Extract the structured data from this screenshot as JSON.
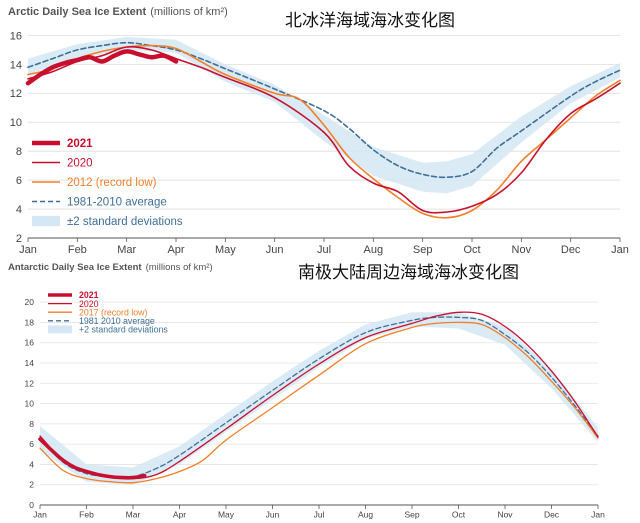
{
  "chart_data": [
    {
      "type": "line",
      "title": "Arctic Daily Sea Ice Extent",
      "title_unit": "(millions of km²)",
      "annotation": "北冰洋海域海冰变化图",
      "x_tick_labels": [
        "Jan",
        "Feb",
        "Mar",
        "Apr",
        "May",
        "Jun",
        "Jul",
        "Aug",
        "Sep",
        "Oct",
        "Nov",
        "Dec",
        "Jan"
      ],
      "y_ticks": [
        2,
        4,
        6,
        8,
        10,
        12,
        14,
        16
      ],
      "ylim": [
        2,
        17
      ],
      "legend_position": "bottom-left",
      "legend": [
        {
          "label": "2021",
          "color": "#c8102e"
        },
        {
          "label": "2020",
          "color": "#c8102e"
        },
        {
          "label": "2012 (record low)",
          "color": "#f07f2a"
        },
        {
          "label": "1981-2010 average",
          "color": "#3f6f98"
        },
        {
          "label": "±2 standard deviations",
          "color": "#d5e7f5"
        }
      ],
      "band": {
        "x": [
          0,
          1,
          2,
          3,
          4,
          5,
          6,
          7,
          8,
          8.5,
          9,
          10,
          11,
          12
        ],
        "lower": [
          13.3,
          14.4,
          15.0,
          14.8,
          12.8,
          11.4,
          8.7,
          6.3,
          5.2,
          5.1,
          5.6,
          8.6,
          11.3,
          13.1
        ],
        "upper": [
          14.4,
          15.4,
          15.9,
          15.7,
          14.0,
          12.6,
          10.5,
          8.3,
          7.2,
          7.3,
          7.8,
          10.4,
          12.5,
          14.1
        ]
      },
      "series": [
        {
          "name": "1981-2010 average",
          "color": "#3f6f98",
          "x": [
            0,
            0.5,
            1,
            1.5,
            2,
            2.5,
            3,
            3.5,
            4,
            5,
            6,
            6.5,
            7,
            7.5,
            8,
            8.5,
            9,
            9.5,
            10,
            11,
            11.5,
            12
          ],
          "y": [
            13.8,
            14.4,
            15.0,
            15.3,
            15.5,
            15.3,
            15.0,
            14.4,
            13.7,
            12.3,
            10.8,
            9.6,
            8.1,
            7.0,
            6.4,
            6.2,
            6.6,
            8.2,
            9.4,
            11.8,
            12.8,
            13.6
          ]
        },
        {
          "name": "2012",
          "color": "#f07f2a",
          "x": [
            0,
            0.5,
            1,
            1.5,
            2,
            2.5,
            3,
            3.5,
            4,
            5,
            5.5,
            6,
            6.5,
            7,
            7.5,
            8,
            8.5,
            9,
            9.5,
            10,
            10.5,
            11,
            11.5,
            12
          ],
          "y": [
            13.3,
            13.7,
            14.4,
            14.9,
            15.2,
            15.3,
            15.1,
            14.2,
            13.3,
            12.0,
            11.6,
            9.8,
            7.6,
            6.1,
            4.8,
            3.7,
            3.4,
            3.9,
            5.3,
            7.3,
            8.8,
            10.3,
            11.8,
            12.9
          ]
        },
        {
          "name": "2020",
          "color": "#c8102e",
          "x": [
            0,
            0.5,
            1,
            1.5,
            2,
            2.5,
            3,
            3.5,
            4,
            5,
            6,
            6.5,
            7,
            7.5,
            8,
            8.5,
            9,
            9.5,
            10,
            10.5,
            11,
            11.5,
            12
          ],
          "y": [
            13.0,
            13.5,
            14.2,
            14.6,
            15.2,
            15.0,
            14.4,
            13.8,
            13.1,
            11.7,
            9.3,
            7.0,
            5.8,
            5.2,
            3.9,
            3.8,
            4.2,
            5.0,
            6.5,
            8.8,
            10.6,
            11.6,
            12.7
          ]
        },
        {
          "name": "2021",
          "color": "#c8102e",
          "bold": true,
          "x": [
            0,
            0.25,
            0.5,
            0.75,
            1,
            1.25,
            1.5,
            1.75,
            2,
            2.25,
            2.5,
            2.75,
            3
          ],
          "y": [
            12.7,
            13.3,
            13.8,
            14.1,
            14.3,
            14.5,
            14.2,
            14.6,
            14.9,
            14.7,
            14.5,
            14.6,
            14.2
          ]
        }
      ]
    },
    {
      "type": "line",
      "title": "Antarctic Daily Sea Ice Extent",
      "title_unit": "(millions of km²)",
      "annotation": "南极大陆周边海域海冰变化图",
      "x_tick_labels": [
        "Jan",
        "Feb",
        "Mar",
        "Apr",
        "May",
        "Jun",
        "Jul",
        "Aug",
        "Sep",
        "Oct",
        "Nov",
        "Dec",
        "Jan"
      ],
      "y_ticks": [
        0,
        2,
        4,
        6,
        8,
        10,
        12,
        14,
        16,
        18,
        20
      ],
      "ylim": [
        0,
        21
      ],
      "legend_position": "top-left",
      "legend": [
        {
          "label": "2021",
          "color": "#c8102e"
        },
        {
          "label": "2020",
          "color": "#c8102e"
        },
        {
          "label": "2017 (record low)",
          "color": "#f07f2a"
        },
        {
          "label": "1981 2010 average",
          "color": "#3f6f98"
        },
        {
          "label": "+2 standard deviations",
          "color": "#d5e7f5"
        }
      ],
      "band": {
        "x": [
          0,
          1,
          2,
          3,
          4,
          5,
          6,
          7,
          8,
          9,
          10,
          11,
          12
        ],
        "lower": [
          5.4,
          2.3,
          2.0,
          4.0,
          7.2,
          10.4,
          13.6,
          16.4,
          17.6,
          17.4,
          15.8,
          11.5,
          6.2
        ],
        "upper": [
          7.8,
          4.0,
          3.7,
          5.8,
          9.0,
          12.2,
          15.2,
          17.8,
          19.0,
          19.0,
          17.6,
          13.4,
          7.6
        ]
      },
      "series": [
        {
          "name": "1981-2010 average",
          "color": "#3f6f98",
          "x": [
            0,
            0.5,
            1,
            1.5,
            2,
            2.5,
            3,
            4,
            5,
            6,
            7,
            8,
            8.5,
            9,
            9.5,
            10,
            10.5,
            11,
            11.5,
            12
          ],
          "y": [
            6.6,
            4.2,
            3.1,
            2.8,
            2.8,
            3.6,
            4.9,
            8.1,
            11.3,
            14.4,
            17.0,
            18.2,
            18.5,
            18.5,
            18.2,
            16.8,
            15.0,
            12.6,
            9.8,
            6.8
          ]
        },
        {
          "name": "2017",
          "color": "#f07f2a",
          "x": [
            0,
            0.5,
            1,
            1.5,
            2,
            2.5,
            3,
            3.5,
            4,
            5,
            6,
            7,
            8,
            8.5,
            9,
            9.5,
            10,
            10.5,
            11,
            11.5,
            12
          ],
          "y": [
            5.6,
            3.4,
            2.6,
            2.3,
            2.2,
            2.6,
            3.3,
            4.4,
            6.4,
            9.6,
            12.8,
            15.9,
            17.5,
            17.9,
            18.0,
            17.8,
            16.5,
            14.6,
            12.2,
            9.6,
            6.6
          ]
        },
        {
          "name": "2020",
          "color": "#c8102e",
          "x": [
            0,
            0.5,
            1,
            1.5,
            2,
            2.5,
            3,
            4,
            5,
            6,
            7,
            8,
            8.5,
            9,
            9.5,
            10,
            10.5,
            11,
            11.5,
            12
          ],
          "y": [
            6.8,
            4.4,
            3.3,
            2.9,
            2.6,
            3.0,
            4.3,
            7.5,
            10.8,
            13.9,
            16.5,
            17.9,
            18.6,
            19.0,
            18.8,
            17.6,
            15.7,
            13.2,
            10.2,
            6.7
          ]
        },
        {
          "name": "2021",
          "color": "#c8102e",
          "bold": true,
          "x": [
            0,
            0.25,
            0.5,
            0.75,
            1,
            1.25,
            1.5,
            1.75,
            2,
            2.25
          ],
          "y": [
            6.5,
            5.4,
            4.4,
            3.7,
            3.3,
            3.0,
            2.8,
            2.7,
            2.7,
            2.9
          ]
        }
      ]
    }
  ]
}
